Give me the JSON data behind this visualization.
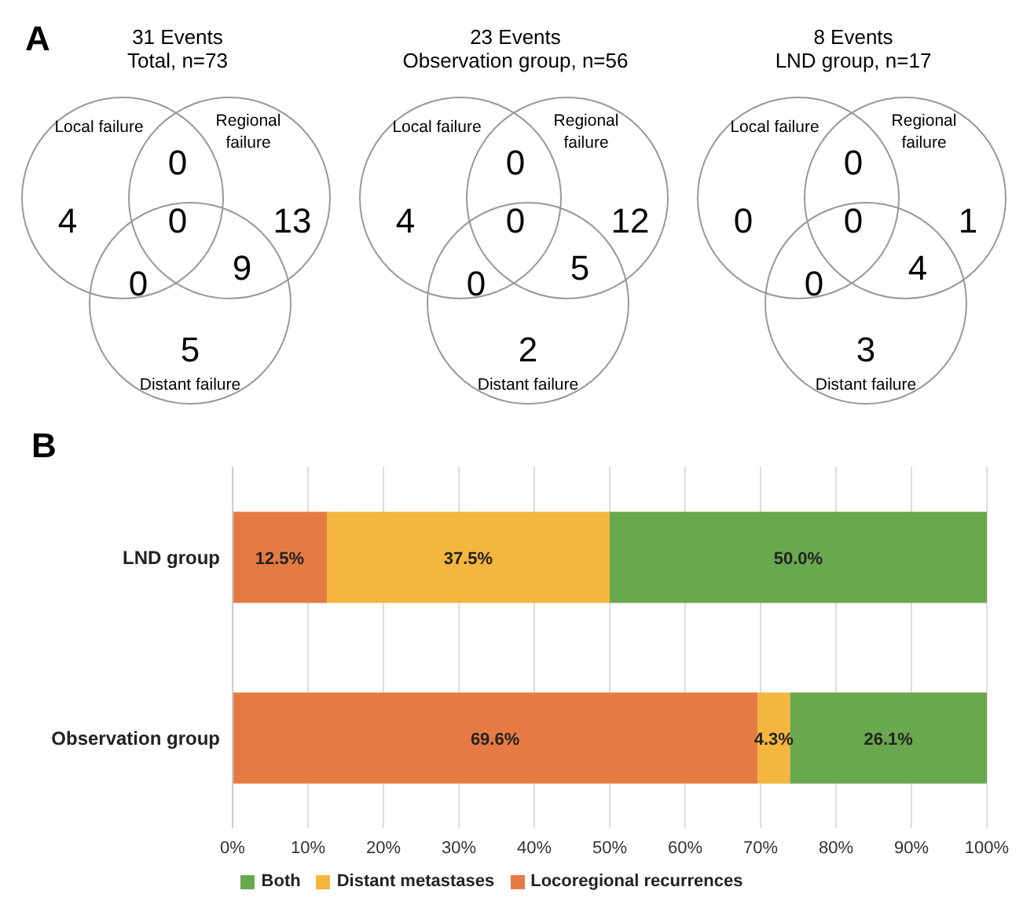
{
  "chart_data": [
    {
      "type": "other",
      "title": "31 Events",
      "subtitle": "Total, n=73",
      "categories": [
        "Local failure",
        "Regional failure",
        "Distant failure"
      ],
      "values": [
        4,
        13,
        5
      ],
      "data_labels": true,
      "annotations": [
        "0",
        "0",
        "9",
        "0",
        "A"
      ]
    },
    {
      "type": "other",
      "title": "23 Events",
      "subtitle": "Observation group, n=56",
      "categories": [
        "Local failure",
        "Regional failure",
        "Distant failure"
      ],
      "values": [
        4,
        12,
        2
      ],
      "data_labels": true,
      "annotations": [
        "0",
        "0",
        "5",
        "0"
      ]
    },
    {
      "type": "other",
      "title": "8 Events",
      "subtitle": "LND group, n=17",
      "categories": [
        "Local failure",
        "Regional failure",
        "Distant failure"
      ],
      "values": [
        0,
        1,
        3
      ],
      "data_labels": true,
      "annotations": [
        "0",
        "0",
        "4",
        "0"
      ]
    },
    {
      "type": "bar",
      "orientation": "horizontal",
      "stacked": true,
      "annotations": [
        "B"
      ],
      "categories": [
        "LND group",
        "Observation group"
      ],
      "series": [
        {
          "name": "Locoregional recurrences",
          "color": "#e57b43",
          "values": [
            12.5,
            69.6
          ],
          "value_labels": [
            "12.5%",
            "69.6%"
          ]
        },
        {
          "name": "Distant metastases",
          "color": "#f4b63f",
          "values": [
            37.5,
            4.3
          ],
          "value_labels": [
            "37.5%",
            "4.3%"
          ]
        },
        {
          "name": "Both",
          "color": "#6aa84f",
          "values": [
            50.0,
            26.1
          ],
          "value_labels": [
            "50.0%",
            "26.1%"
          ]
        }
      ],
      "xlim": [
        0,
        100
      ],
      "xticks": [
        {
          "value": 0,
          "label": "0%"
        },
        {
          "value": 10,
          "label": "10%"
        },
        {
          "value": 20,
          "label": "20%"
        },
        {
          "value": 30,
          "label": "30%"
        },
        {
          "value": 40,
          "label": "40%"
        },
        {
          "value": 50,
          "label": "50%"
        },
        {
          "value": 60,
          "label": "60%"
        },
        {
          "value": 70,
          "label": "70%"
        },
        {
          "value": 80,
          "label": "80%"
        },
        {
          "value": 90,
          "label": "90%"
        },
        {
          "value": 100,
          "label": "100%"
        }
      ],
      "grid": "x",
      "legend": "bottom"
    }
  ]
}
